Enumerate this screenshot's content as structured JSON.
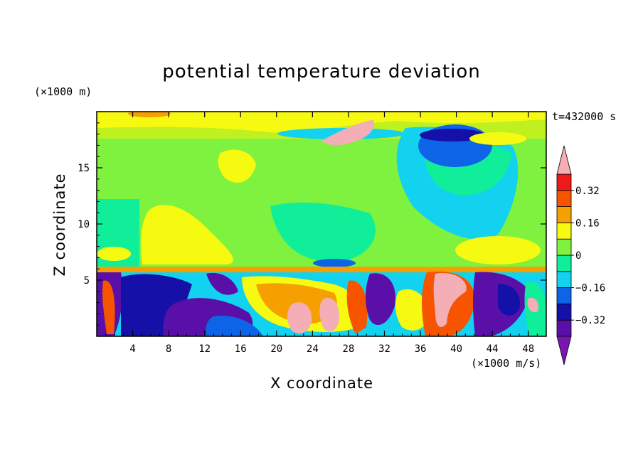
{
  "chart_data": {
    "type": "heatmap",
    "title": "potential temperature deviation",
    "xlabel": "X coordinate",
    "ylabel": "Z coordinate",
    "x_unit": "(×1000 m/s)",
    "z_unit": "(×1000 m)",
    "time_label": "t=432000 s",
    "xlim": [
      0,
      50
    ],
    "ylim": [
      0,
      20
    ],
    "x_ticks": [
      "4",
      "8",
      "12",
      "16",
      "20",
      "24",
      "28",
      "32",
      "36",
      "40",
      "44",
      "48"
    ],
    "y_ticks": [
      "5",
      "10",
      "15"
    ],
    "colorbar": {
      "levels": [
        -0.4,
        -0.32,
        -0.24,
        -0.16,
        -0.08,
        0,
        0.08,
        0.16,
        0.24,
        0.32,
        0.4
      ],
      "tick_labels": [
        "0.32",
        "0.16",
        "0",
        "−0.16",
        "−0.32"
      ],
      "colors": [
        "#7a16b0",
        "#5a0fa8",
        "#1410a8",
        "#0e64e6",
        "#12d2f0",
        "#10ee9a",
        "#7ef23e",
        "#f6fa10",
        "#f5a000",
        "#f75400",
        "#f01818",
        "#f4aeb6"
      ]
    },
    "layers": [
      {
        "band_km": [
          0,
          6.2
        ],
        "pattern": "turbulent, mixed strong positive and negative anomalies"
      },
      {
        "band_km": [
          6.2,
          16.5
        ],
        "pattern": "mostly near zero to slightly positive (0 to 0.16)"
      },
      {
        "band_km": [
          16.5,
          20
        ],
        "pattern": "yellow band near top, cold anomaly near x=38-42 at z=17-18 (below -0.32), warm patch near x=27 (above 0.32)"
      }
    ]
  }
}
